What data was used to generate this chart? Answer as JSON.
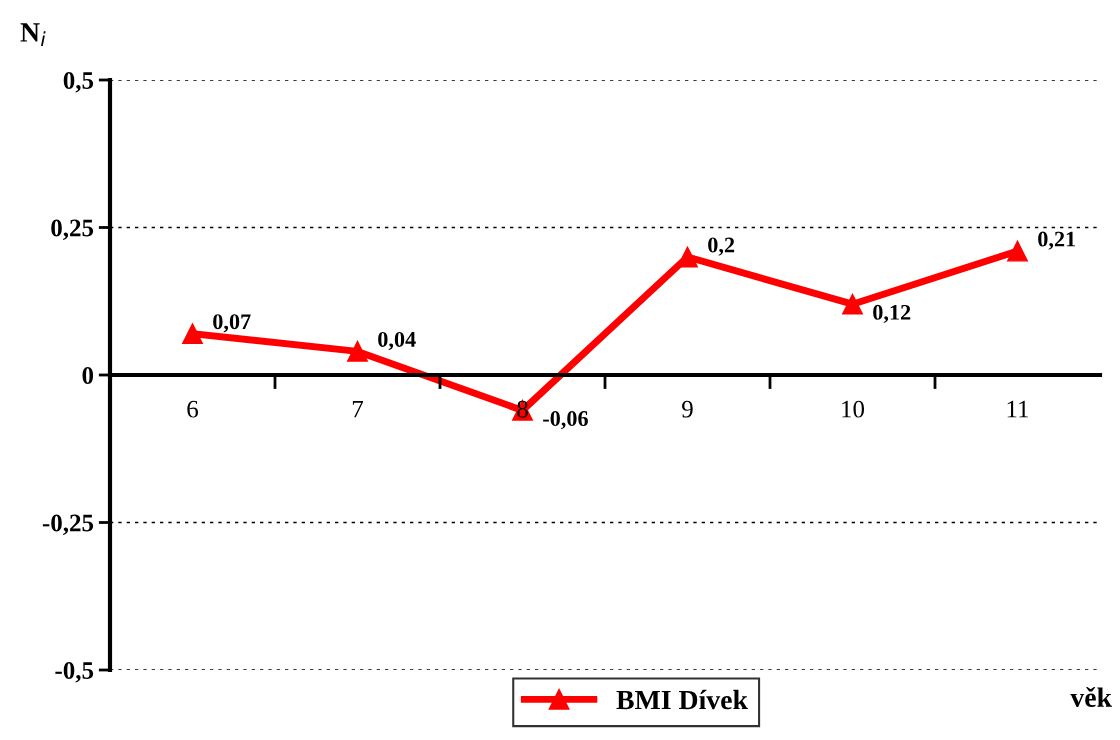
{
  "chart_data": {
    "type": "line",
    "xlabel": "věk",
    "ylabel": "N$_{i}$",
    "categories": [
      "6",
      "7",
      "8",
      "9",
      "10",
      "11"
    ],
    "series": [
      {
        "name": "BMI Dívek",
        "color": "#ff0000",
        "values": [
          0.07,
          0.04,
          -0.06,
          0.2,
          0.12,
          0.21
        ],
        "value_labels": [
          "0,07",
          "0,04",
          "-0,06",
          "0,2",
          "0,12",
          "0,21"
        ]
      }
    ],
    "ylim": [
      -0.5,
      0.5
    ],
    "yticks": [
      {
        "value": -0.5,
        "label": "-0,5"
      },
      {
        "value": -0.25,
        "label": "-0,25"
      },
      {
        "value": 0,
        "label": "0"
      },
      {
        "value": 0.25,
        "label": "0,25"
      },
      {
        "value": 0.5,
        "label": "0,5"
      }
    ],
    "grid": "y",
    "legend": "bottom",
    "marker": "triangle",
    "line_style": "solid"
  }
}
